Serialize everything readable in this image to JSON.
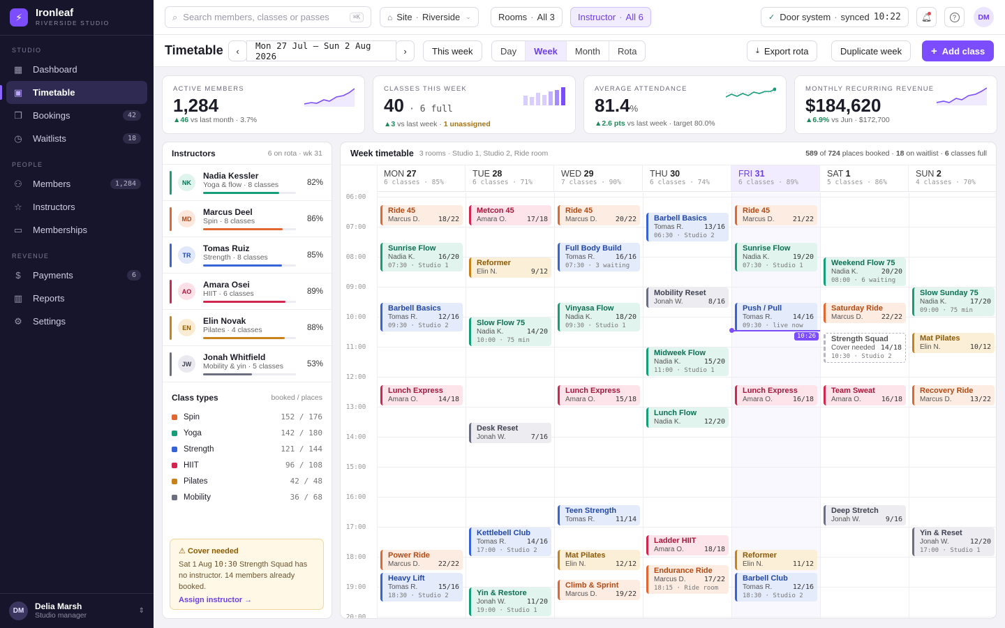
{
  "brand": {
    "name": "Ironleaf",
    "subtitle": "RIVERSIDE STUDIO"
  },
  "sidebar": {
    "sections": [
      {
        "label": "STUDIO",
        "items": [
          {
            "label": "Dashboard",
            "icon": "grid-icon"
          },
          {
            "label": "Timetable",
            "icon": "calendar-icon",
            "active": true
          },
          {
            "label": "Bookings",
            "icon": "bookmark-icon",
            "count": "42"
          },
          {
            "label": "Waitlists",
            "icon": "clock-icon",
            "count": "18"
          }
        ]
      },
      {
        "label": "PEOPLE",
        "items": [
          {
            "label": "Members",
            "icon": "users-icon",
            "count": "1,284"
          },
          {
            "label": "Instructors",
            "icon": "star-icon"
          },
          {
            "label": "Memberships",
            "icon": "card-icon"
          }
        ]
      },
      {
        "label": "REVENUE",
        "items": [
          {
            "label": "Payments",
            "icon": "dollar-icon",
            "count": "6"
          },
          {
            "label": "Reports",
            "icon": "chart-icon"
          },
          {
            "label": "Settings",
            "icon": "gear-icon"
          }
        ]
      }
    ],
    "user": {
      "initials": "DM",
      "name": "Delia Marsh",
      "role": "Studio manager"
    }
  },
  "topbar": {
    "search_placeholder": "Search members, classes or passes",
    "search_kbd": "⌘K",
    "site_label": "Site",
    "site_value": "Riverside",
    "rooms_label": "Rooms",
    "rooms_value": "All 3",
    "instructor_label": "Instructor",
    "instructor_value": "All 6",
    "door_label": "Door system",
    "door_status": "synced",
    "door_time": "10:22",
    "avatar": "DM"
  },
  "header": {
    "title": "Timetable",
    "range": "Mon 27 Jul – Sun 2 Aug 2026",
    "this_week": "This week",
    "views": [
      "Day",
      "Week",
      "Month",
      "Rota"
    ],
    "active_view": "Week",
    "export": "Export rota",
    "duplicate": "Duplicate week",
    "add": "Add class"
  },
  "kpis": [
    {
      "label": "ACTIVE MEMBERS",
      "value": "1,284",
      "delta": "▲46",
      "sub": "vs last month · 3.7%"
    },
    {
      "label": "CLASSES THIS WEEK",
      "value": "40",
      "value_extra": "· 6 full",
      "delta": "▲3",
      "sub": "vs last week ·",
      "warn": "1 unassigned"
    },
    {
      "label": "AVERAGE ATTENDANCE",
      "value": "81.4",
      "unit": "%",
      "delta": "▲2.6 pts",
      "sub": "vs last week · target 80.0%"
    },
    {
      "label": "MONTHLY RECURRING REVENUE",
      "value": "$184,620",
      "delta": "▲6.9%",
      "sub": "vs Jun · $172,700"
    }
  ],
  "instructors": {
    "title": "Instructors",
    "meta": "6 on rota · wk 31",
    "list": [
      {
        "initials": "NK",
        "name": "Nadia Kessler",
        "desc": "Yoga & flow · 8 classes",
        "pct": "82%",
        "fill": 0.82,
        "color": "#169e7a",
        "bg": "#dff4ec",
        "fg": "#0c6e53"
      },
      {
        "initials": "MD",
        "name": "Marcus Deel",
        "desc": "Spin · 8 classes",
        "pct": "86%",
        "fill": 0.86,
        "color": "#e1662f",
        "bg": "#fde7dc",
        "fg": "#b34a14"
      },
      {
        "initials": "TR",
        "name": "Tomas Ruiz",
        "desc": "Strength · 8 classes",
        "pct": "85%",
        "fill": 0.85,
        "color": "#3763d8",
        "bg": "#e1e8fa",
        "fg": "#2347a5"
      },
      {
        "initials": "AO",
        "name": "Amara Osei",
        "desc": "HIIT · 6 classes",
        "pct": "89%",
        "fill": 0.89,
        "color": "#d3264f",
        "bg": "#fbe1e7",
        "fg": "#a8163b"
      },
      {
        "initials": "EN",
        "name": "Elin Novak",
        "desc": "Pilates · 4 classes",
        "pct": "88%",
        "fill": 0.88,
        "color": "#c9821a",
        "bg": "#faecd3",
        "fg": "#8d5a06"
      },
      {
        "initials": "JW",
        "name": "Jonah Whitfield",
        "desc": "Mobility & yin · 5 classes",
        "pct": "53%",
        "fill": 0.53,
        "color": "#6b6f80",
        "bg": "#e9e9ef",
        "fg": "#3f4250"
      }
    ]
  },
  "class_types": {
    "title": "Class types",
    "meta": "booked / places",
    "list": [
      {
        "name": "Spin",
        "booked": "152",
        "places": "176",
        "color": "#e1662f"
      },
      {
        "name": "Yoga",
        "booked": "142",
        "places": "180",
        "color": "#169e7a"
      },
      {
        "name": "Strength",
        "booked": "121",
        "places": "144",
        "color": "#3763d8"
      },
      {
        "name": "HIIT",
        "booked": "96",
        "places": "108",
        "color": "#d3264f"
      },
      {
        "name": "Pilates",
        "booked": "42",
        "places": "48",
        "color": "#c9821a"
      },
      {
        "name": "Mobility",
        "booked": "36",
        "places": "68",
        "color": "#6b6f80"
      }
    ]
  },
  "cover": {
    "title": "Cover needed",
    "body_prefix": "Sat 1 Aug",
    "body_time": "10:30",
    "body_suffix": "Strength Squad has no instructor. 14 members already booked.",
    "action": "Assign instructor →"
  },
  "timetable": {
    "title": "Week timetable",
    "rooms": "3 rooms · Studio 1, Studio 2, Ride room",
    "booked": "589",
    "places": "724",
    "waitlist": "18",
    "full": "6",
    "now": "10:26",
    "hours": [
      "06:00",
      "07:00",
      "08:00",
      "09:00",
      "10:00",
      "11:00",
      "12:00",
      "13:00",
      "14:00",
      "15:00",
      "16:00",
      "17:00",
      "18:00",
      "19:00",
      "20:00"
    ],
    "days": [
      {
        "dow": "MON",
        "date": "27",
        "meta": "6 classes · 85%"
      },
      {
        "dow": "TUE",
        "date": "28",
        "meta": "6 classes · 71%"
      },
      {
        "dow": "WED",
        "date": "29",
        "meta": "7 classes · 90%"
      },
      {
        "dow": "THU",
        "date": "30",
        "meta": "6 classes · 74%"
      },
      {
        "dow": "FRI",
        "date": "31",
        "meta": "6 classes · 89%",
        "today": true
      },
      {
        "dow": "SAT",
        "date": "1",
        "meta": "5 classes · 86%"
      },
      {
        "dow": "SUN",
        "date": "2",
        "meta": "4 classes · 70%"
      }
    ],
    "events": [
      {
        "d": 0,
        "s": "06:15",
        "n": "Ride 45",
        "i": "Marcus D.",
        "c": "18/22",
        "t": "spin"
      },
      {
        "d": 0,
        "s": "07:30",
        "n": "Sunrise Flow",
        "i": "Nadia K.",
        "c": "16/20",
        "t": "yoga",
        "x": "07:30 · Studio 1"
      },
      {
        "d": 0,
        "s": "09:30",
        "n": "Barbell Basics",
        "i": "Tomas R.",
        "c": "12/16",
        "t": "str",
        "x": "09:30 · Studio 2"
      },
      {
        "d": 0,
        "s": "12:15",
        "n": "Lunch Express",
        "i": "Amara O.",
        "c": "14/18",
        "t": "hiit"
      },
      {
        "d": 0,
        "s": "17:45",
        "n": "Power Ride",
        "i": "Marcus D.",
        "c": "22/22",
        "t": "spin"
      },
      {
        "d": 0,
        "s": "18:30",
        "n": "Heavy Lift",
        "i": "Tomas R.",
        "c": "15/16",
        "t": "str",
        "x": "18:30 · Studio 2"
      },
      {
        "d": 1,
        "s": "06:15",
        "n": "Metcon 45",
        "i": "Amara O.",
        "c": "17/18",
        "t": "hiit"
      },
      {
        "d": 1,
        "s": "08:00",
        "n": "Reformer",
        "i": "Elin N.",
        "c": "9/12",
        "t": "pil"
      },
      {
        "d": 1,
        "s": "10:00",
        "n": "Slow Flow 75",
        "i": "Nadia K.",
        "c": "14/20",
        "t": "yoga",
        "x": "10:00 · 75 min"
      },
      {
        "d": 1,
        "s": "13:30",
        "n": "Desk Reset",
        "i": "Jonah W.",
        "c": "7/16",
        "t": "mob"
      },
      {
        "d": 1,
        "s": "17:00",
        "n": "Kettlebell Club",
        "i": "Tomas R.",
        "c": "14/16",
        "t": "str",
        "x": "17:00 · Studio 2"
      },
      {
        "d": 1,
        "s": "19:00",
        "n": "Yin & Restore",
        "i": "Jonah W.",
        "c": "11/20",
        "t": "yoga",
        "x": "19:00 · Studio 1"
      },
      {
        "d": 2,
        "s": "06:15",
        "n": "Ride 45",
        "i": "Marcus D.",
        "c": "20/22",
        "t": "spin"
      },
      {
        "d": 2,
        "s": "07:30",
        "n": "Full Body Build",
        "i": "Tomas R.",
        "c": "16/16",
        "t": "str",
        "x": "07:30 · 3 waiting"
      },
      {
        "d": 2,
        "s": "09:30",
        "n": "Vinyasa Flow",
        "i": "Nadia K.",
        "c": "18/20",
        "t": "yoga",
        "x": "09:30 · Studio 1"
      },
      {
        "d": 2,
        "s": "12:15",
        "n": "Lunch Express",
        "i": "Amara O.",
        "c": "15/18",
        "t": "hiit"
      },
      {
        "d": 2,
        "s": "16:15",
        "n": "Teen Strength",
        "i": "Tomas R.",
        "c": "11/14",
        "t": "str"
      },
      {
        "d": 2,
        "s": "17:45",
        "n": "Mat Pilates",
        "i": "Elin N.",
        "c": "12/12",
        "t": "pil"
      },
      {
        "d": 2,
        "s": "18:45",
        "n": "Climb & Sprint",
        "i": "Marcus D.",
        "c": "19/22",
        "t": "spin"
      },
      {
        "d": 3,
        "s": "06:30",
        "n": "Barbell Basics",
        "i": "Tomas R.",
        "c": "13/16",
        "t": "str",
        "x": "06:30 · Studio 2"
      },
      {
        "d": 3,
        "s": "09:00",
        "n": "Mobility Reset",
        "i": "Jonah W.",
        "c": "8/16",
        "t": "mob"
      },
      {
        "d": 3,
        "s": "11:00",
        "n": "Midweek Flow",
        "i": "Nadia K.",
        "c": "15/20",
        "t": "yoga",
        "x": "11:00 · Studio 1"
      },
      {
        "d": 3,
        "s": "13:00",
        "n": "Lunch Flow",
        "i": "Nadia K.",
        "c": "12/20",
        "t": "yoga"
      },
      {
        "d": 3,
        "s": "17:15",
        "n": "Ladder HIIT",
        "i": "Amara O.",
        "c": "18/18",
        "t": "hiit"
      },
      {
        "d": 3,
        "s": "18:15",
        "n": "Endurance Ride",
        "i": "Marcus D.",
        "c": "17/22",
        "t": "spin",
        "x": "18:15 · Ride room"
      },
      {
        "d": 4,
        "s": "06:15",
        "n": "Ride 45",
        "i": "Marcus D.",
        "c": "21/22",
        "t": "spin"
      },
      {
        "d": 4,
        "s": "07:30",
        "n": "Sunrise Flow",
        "i": "Nadia K.",
        "c": "19/20",
        "t": "yoga",
        "x": "07:30 · Studio 1"
      },
      {
        "d": 4,
        "s": "09:30",
        "n": "Push / Pull",
        "i": "Tomas R.",
        "c": "14/16",
        "t": "str",
        "x": "09:30 · live now"
      },
      {
        "d": 4,
        "s": "12:15",
        "n": "Lunch Express",
        "i": "Amara O.",
        "c": "16/18",
        "t": "hiit"
      },
      {
        "d": 4,
        "s": "17:45",
        "n": "Reformer",
        "i": "Elin N.",
        "c": "11/12",
        "t": "pil"
      },
      {
        "d": 4,
        "s": "18:30",
        "n": "Barbell Club",
        "i": "Tomas R.",
        "c": "12/16",
        "t": "str",
        "x": "18:30 · Studio 2"
      },
      {
        "d": 5,
        "s": "08:00",
        "n": "Weekend Flow 75",
        "i": "Nadia K.",
        "c": "20/20",
        "t": "yoga",
        "x": "08:00 · 6 waiting"
      },
      {
        "d": 5,
        "s": "09:30",
        "n": "Saturday Ride",
        "i": "Marcus D.",
        "c": "22/22",
        "t": "spin"
      },
      {
        "d": 5,
        "s": "10:30",
        "n": "Strength Squad",
        "i": "Cover needed",
        "c": "14/18",
        "t": "cover",
        "x": "10:30 · Studio 2"
      },
      {
        "d": 5,
        "s": "12:15",
        "n": "Team Sweat",
        "i": "Amara O.",
        "c": "16/18",
        "t": "hiit"
      },
      {
        "d": 5,
        "s": "16:15",
        "n": "Deep Stretch",
        "i": "Jonah W.",
        "c": "9/16",
        "t": "mob"
      },
      {
        "d": 6,
        "s": "09:00",
        "n": "Slow Sunday 75",
        "i": "Nadia K.",
        "c": "17/20",
        "t": "yoga",
        "x": "09:00 · 75 min"
      },
      {
        "d": 6,
        "s": "10:30",
        "n": "Mat Pilates",
        "i": "Elin N.",
        "c": "10/12",
        "t": "pil"
      },
      {
        "d": 6,
        "s": "12:15",
        "n": "Recovery Ride",
        "i": "Marcus D.",
        "c": "13/22",
        "t": "spin"
      },
      {
        "d": 6,
        "s": "17:00",
        "n": "Yin & Reset",
        "i": "Jonah W.",
        "c": "12/20",
        "t": "mob",
        "x": "17:00 · Studio 1"
      }
    ]
  }
}
